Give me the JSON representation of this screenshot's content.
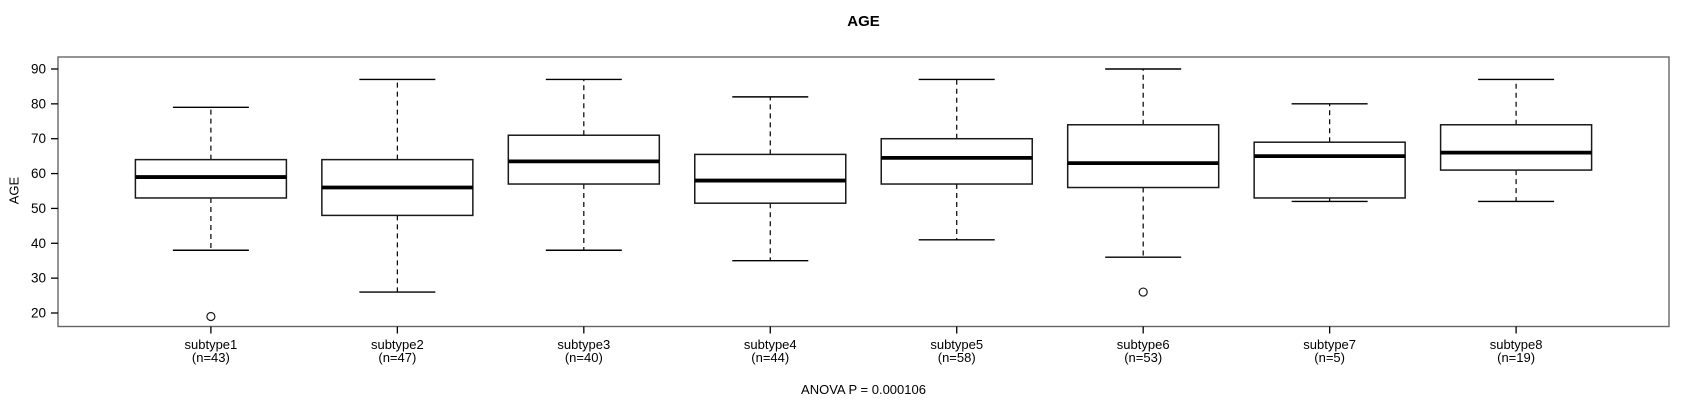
{
  "title": "AGE",
  "y_axis_label": "AGE",
  "anova_note": "ANOVA P = 0.000106",
  "colors": {
    "line": "#000000",
    "box_border": "#1a1a1a",
    "frame": "#666666",
    "background": "#ffffff"
  },
  "chart_data": {
    "type": "boxplot",
    "title": "AGE",
    "xlabel": "",
    "ylabel": "AGE",
    "ylim": [
      16,
      94
    ],
    "yticks": [
      20,
      30,
      40,
      50,
      60,
      70,
      80,
      90
    ],
    "grid": false,
    "annotation": "ANOVA P = 0.000106",
    "groups": [
      {
        "label": "subtype1",
        "sublabel": "(n=43)",
        "n": 43,
        "whisker_low": 38,
        "q1": 53,
        "median": 59,
        "q3": 64,
        "whisker_high": 79,
        "outliers": [
          19
        ]
      },
      {
        "label": "subtype2",
        "sublabel": "(n=47)",
        "n": 47,
        "whisker_low": 26,
        "q1": 48,
        "median": 56,
        "q3": 64,
        "whisker_high": 87,
        "outliers": []
      },
      {
        "label": "subtype3",
        "sublabel": "(n=40)",
        "n": 40,
        "whisker_low": 38,
        "q1": 57,
        "median": 63.5,
        "q3": 71,
        "whisker_high": 87,
        "outliers": []
      },
      {
        "label": "subtype4",
        "sublabel": "(n=44)",
        "n": 44,
        "whisker_low": 35,
        "q1": 51.5,
        "median": 58,
        "q3": 65.5,
        "whisker_high": 82,
        "outliers": []
      },
      {
        "label": "subtype5",
        "sublabel": "(n=58)",
        "n": 58,
        "whisker_low": 41,
        "q1": 57,
        "median": 64.5,
        "q3": 70,
        "whisker_high": 87,
        "outliers": []
      },
      {
        "label": "subtype6",
        "sublabel": "(n=53)",
        "n": 53,
        "whisker_low": 36,
        "q1": 56,
        "median": 63,
        "q3": 74,
        "whisker_high": 90,
        "outliers": [
          26
        ]
      },
      {
        "label": "subtype7",
        "sublabel": "(n=5)",
        "n": 5,
        "whisker_low": 52,
        "q1": 53,
        "median": 65,
        "q3": 69,
        "whisker_high": 80,
        "outliers": []
      },
      {
        "label": "subtype8",
        "sublabel": "(n=19)",
        "n": 19,
        "whisker_low": 52,
        "q1": 61,
        "median": 66,
        "q3": 74,
        "whisker_high": 87,
        "outliers": []
      }
    ]
  }
}
